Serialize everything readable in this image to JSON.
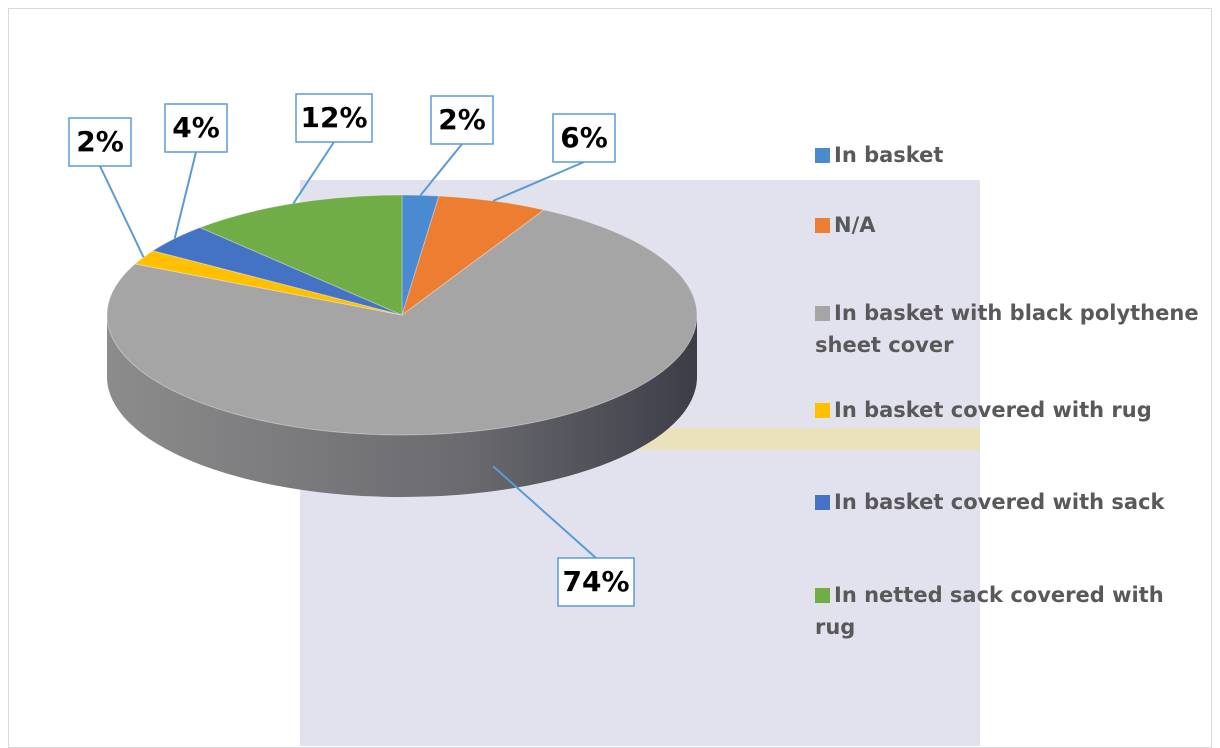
{
  "chart_data": {
    "type": "pie",
    "categories": [
      "In basket",
      "N/A",
      "In basket with black polythene sheet cover",
      "In basket covered with rug",
      "In basket covered with sack",
      "In netted sack covered with rug"
    ],
    "values": [
      2,
      6,
      74,
      2,
      4,
      12
    ],
    "value_labels": [
      "2%",
      "6%",
      "74%",
      "2%",
      "4%",
      "12%"
    ],
    "colors": [
      "#4a8ad0",
      "#ed7d31",
      "#a5a5a5",
      "#ffc000",
      "#4472c4",
      "#70ad47"
    ],
    "legend": "right"
  }
}
